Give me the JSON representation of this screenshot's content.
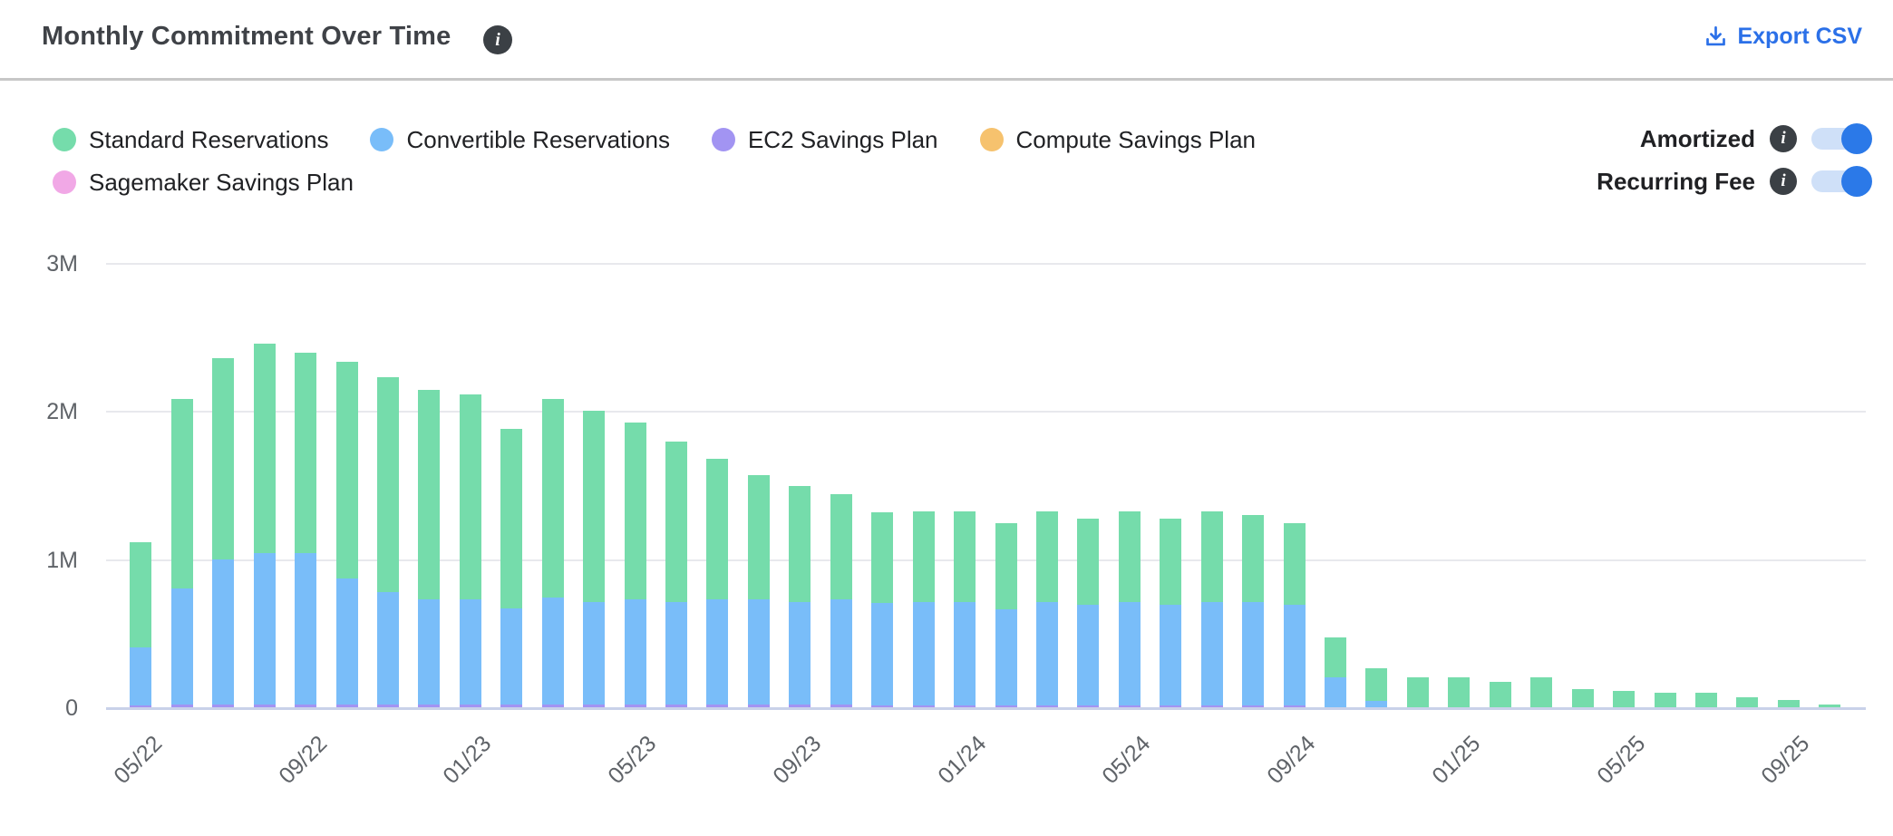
{
  "header": {
    "title": "Monthly Commitment Over Time",
    "export_label": "Export CSV"
  },
  "icons": {
    "info_glyph": "i"
  },
  "colors": {
    "accent_blue": "#2b70e8",
    "toggle_on": "#2b79e8",
    "toggle_track": "#cfe0f8",
    "gridline": "#e8e9ed",
    "axis_line": "#c9d1e9",
    "axis_text": "#5f6368",
    "title_text": "#3f4247"
  },
  "legend": {
    "items": [
      {
        "label": "Standard Reservations",
        "color": "#75dcab"
      },
      {
        "label": "Convertible Reservations",
        "color": "#79bdf9"
      },
      {
        "label": "EC2 Savings Plan",
        "color": "#a294f2"
      },
      {
        "label": "Compute Savings Plan",
        "color": "#f6c26e"
      },
      {
        "label": "Sagemaker Savings Plan",
        "color": "#f1a8e6"
      }
    ]
  },
  "toggles": [
    {
      "label": "Amortized",
      "state": "on"
    },
    {
      "label": "Recurring Fee",
      "state": "on"
    }
  ],
  "chart_data": {
    "type": "bar",
    "stacked": true,
    "title": "Monthly Commitment Over Time",
    "unit": "millions USD",
    "grid": true,
    "legend_position": "top-left",
    "ylim": [
      0,
      3
    ],
    "yticks": [
      {
        "label": "0",
        "value": 0
      },
      {
        "label": "1M",
        "value": 1
      },
      {
        "label": "2M",
        "value": 2
      },
      {
        "label": "3M",
        "value": 3
      }
    ],
    "x": [
      "05/22",
      "06/22",
      "07/22",
      "08/22",
      "09/22",
      "10/22",
      "11/22",
      "12/22",
      "01/23",
      "02/23",
      "03/23",
      "04/23",
      "05/23",
      "06/23",
      "07/23",
      "08/23",
      "09/23",
      "10/23",
      "11/23",
      "12/23",
      "01/24",
      "02/24",
      "03/24",
      "04/24",
      "05/24",
      "06/24",
      "07/24",
      "08/24",
      "09/24",
      "10/24",
      "11/24",
      "12/24",
      "01/25",
      "02/25",
      "03/25",
      "04/25",
      "05/25",
      "06/25",
      "07/25",
      "08/25",
      "09/25",
      "10/25"
    ],
    "x_label_every": 4,
    "series": [
      {
        "name": "EC2 Savings Plan",
        "color": "#a294f2",
        "values": [
          0.015,
          0.02,
          0.02,
          0.02,
          0.02,
          0.02,
          0.02,
          0.02,
          0.02,
          0.02,
          0.02,
          0.02,
          0.02,
          0.02,
          0.02,
          0.02,
          0.02,
          0.02,
          0.01,
          0.01,
          0.01,
          0.01,
          0.01,
          0.01,
          0.01,
          0.01,
          0.01,
          0.01,
          0.01,
          0,
          0,
          0,
          0,
          0,
          0,
          0,
          0,
          0,
          0,
          0,
          0,
          0
        ]
      },
      {
        "name": "Convertible Reservations",
        "color": "#79bdf9",
        "values": [
          0.39,
          0.78,
          0.98,
          1.02,
          1.02,
          0.85,
          0.76,
          0.71,
          0.71,
          0.65,
          0.72,
          0.69,
          0.71,
          0.69,
          0.71,
          0.71,
          0.69,
          0.71,
          0.69,
          0.7,
          0.7,
          0.65,
          0.7,
          0.68,
          0.7,
          0.68,
          0.7,
          0.7,
          0.68,
          0.2,
          0.04,
          0,
          0,
          0,
          0,
          0,
          0,
          0,
          0,
          0,
          0,
          0
        ]
      },
      {
        "name": "Standard Reservations",
        "color": "#75dcab",
        "values": [
          0.71,
          1.28,
          1.36,
          1.41,
          1.35,
          1.46,
          1.45,
          1.41,
          1.38,
          1.21,
          1.34,
          1.29,
          1.19,
          1.08,
          0.95,
          0.84,
          0.78,
          0.71,
          0.61,
          0.61,
          0.61,
          0.58,
          0.61,
          0.58,
          0.61,
          0.58,
          0.61,
          0.59,
          0.55,
          0.27,
          0.22,
          0.2,
          0.2,
          0.17,
          0.2,
          0.12,
          0.11,
          0.1,
          0.1,
          0.07,
          0.05,
          0.02
        ]
      },
      {
        "name": "Compute Savings Plan",
        "color": "#f6c26e",
        "values": [
          0,
          0,
          0,
          0,
          0,
          0,
          0,
          0,
          0,
          0,
          0,
          0,
          0,
          0,
          0,
          0,
          0,
          0,
          0,
          0,
          0,
          0,
          0,
          0,
          0,
          0,
          0,
          0,
          0,
          0,
          0,
          0,
          0,
          0,
          0,
          0,
          0,
          0,
          0,
          0,
          0,
          0
        ]
      },
      {
        "name": "Sagemaker Savings Plan",
        "color": "#f1a8e6",
        "values": [
          0,
          0,
          0,
          0,
          0,
          0,
          0,
          0,
          0,
          0,
          0,
          0,
          0,
          0,
          0,
          0,
          0,
          0,
          0,
          0,
          0,
          0,
          0,
          0,
          0,
          0,
          0,
          0,
          0,
          0,
          0,
          0,
          0,
          0,
          0,
          0,
          0,
          0,
          0,
          0,
          0,
          0
        ]
      }
    ],
    "totals": [
      1.12,
      2.08,
      2.36,
      2.45,
      2.39,
      2.33,
      2.23,
      2.14,
      2.11,
      1.88,
      2.08,
      2.0,
      1.92,
      1.79,
      1.68,
      1.57,
      1.49,
      1.44,
      1.31,
      1.32,
      1.32,
      1.24,
      1.32,
      1.27,
      1.32,
      1.27,
      1.32,
      1.3,
      1.24,
      0.47,
      0.26,
      0.2,
      0.2,
      0.17,
      0.2,
      0.12,
      0.11,
      0.1,
      0.1,
      0.07,
      0.05,
      0.02
    ]
  }
}
